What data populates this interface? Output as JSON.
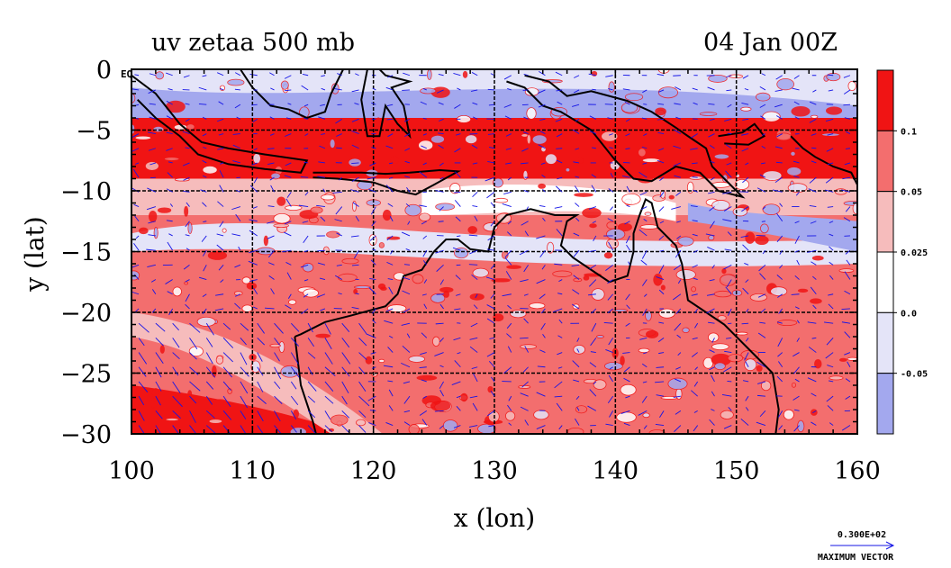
{
  "chart_data": {
    "type": "heatmap",
    "title_left": "uv zetaa 500 mb",
    "title_right": "04 Jan 00Z",
    "xlabel": "x (lon)",
    "ylabel": "y (lat)",
    "xlim": [
      100,
      160
    ],
    "ylim": [
      -30,
      0
    ],
    "xticks": [
      "100",
      "110",
      "120",
      "130",
      "140",
      "150",
      "160"
    ],
    "xtick_values": [
      100,
      110,
      120,
      130,
      140,
      150,
      160
    ],
    "yticks": [
      "0",
      "−5",
      "−10",
      "−15",
      "−20",
      "−25",
      "−30"
    ],
    "ytick_values": [
      0,
      -5,
      -10,
      -15,
      -20,
      -25,
      -30
    ],
    "equator_label": "EQ",
    "grid": true,
    "colorbar": {
      "placement": "right",
      "levels": [
        "0.1",
        "0.05",
        "0.025",
        "0.0",
        "-0.05"
      ],
      "colors": [
        "#f01414",
        "#f36e6e",
        "#f6bcbc",
        "#ffffff",
        "#e4e4f8",
        "#a3a8ee"
      ]
    },
    "colors": {
      "strong_positive": "#f01414",
      "moderate_positive": "#f36e6e",
      "weak_positive": "#f6bcbc",
      "near_zero": "#ffffff",
      "weak_negative": "#e4e4f8",
      "strong_negative": "#a3a8ee",
      "vectors": "#1414e6",
      "coastline": "#000000"
    },
    "vector_legend": {
      "value": "0.300E+02",
      "label": "MAXIMUM VECTOR"
    },
    "bands": [
      {
        "name": "north-blue",
        "lat_top": 0,
        "lat_bottom": -4,
        "level": "strong_negative"
      },
      {
        "name": "maritime-red",
        "lat_top": -4,
        "lat_bottom": -9,
        "level": "strong_positive"
      },
      {
        "name": "mid-pink",
        "lat_top": -9,
        "lat_bottom": -12,
        "level": "weak_positive"
      },
      {
        "name": "southern-red",
        "lat_top": -12,
        "lat_bottom": -30,
        "level": "moderate_positive"
      }
    ]
  }
}
